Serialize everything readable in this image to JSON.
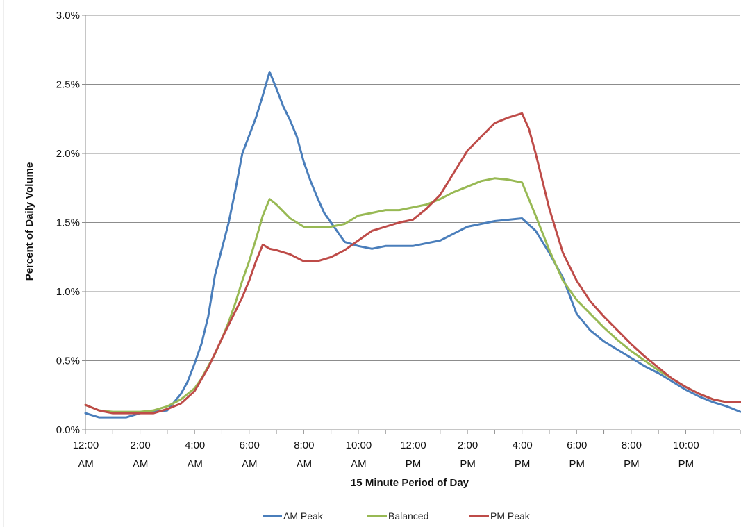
{
  "chart_data": {
    "type": "line",
    "title": "",
    "xlabel": "15 Minute Period of Day",
    "ylabel": "Percent of Daily Volume",
    "ylim": [
      0,
      3.0
    ],
    "y_ticks": [
      "0.0%",
      "0.5%",
      "1.0%",
      "1.5%",
      "2.0%",
      "2.5%",
      "3.0%"
    ],
    "x_tick_labels": [
      [
        "12:00",
        "AM"
      ],
      [
        "2:00",
        "AM"
      ],
      [
        "4:00",
        "AM"
      ],
      [
        "6:00",
        "AM"
      ],
      [
        "8:00",
        "AM"
      ],
      [
        "10:00",
        "AM"
      ],
      [
        "12:00",
        "PM"
      ],
      [
        "2:00",
        "PM"
      ],
      [
        "4:00",
        "PM"
      ],
      [
        "6:00",
        "PM"
      ],
      [
        "8:00",
        "PM"
      ],
      [
        "10:00",
        "PM"
      ]
    ],
    "x_unit": "hour of day",
    "x_range": [
      0,
      24
    ],
    "grid": "horizontal",
    "legend_position": "bottom",
    "series": [
      {
        "name": "AM Peak",
        "color": "#4a7ebb",
        "x": [
          0,
          0.5,
          1,
          1.5,
          2,
          2.5,
          3,
          3.25,
          3.5,
          3.75,
          4,
          4.25,
          4.5,
          4.75,
          5,
          5.25,
          5.5,
          5.75,
          6,
          6.25,
          6.5,
          6.75,
          7,
          7.25,
          7.5,
          7.75,
          8,
          8.25,
          8.5,
          8.75,
          9,
          9.5,
          10,
          10.5,
          11,
          11.5,
          12,
          12.5,
          13,
          13.5,
          14,
          14.5,
          15,
          15.5,
          16,
          16.5,
          16.75,
          17,
          17.5,
          18,
          18.5,
          19,
          19.5,
          20,
          20.5,
          21,
          21.5,
          22,
          22.5,
          23,
          23.5,
          24
        ],
        "values": [
          0.12,
          0.09,
          0.09,
          0.09,
          0.12,
          0.13,
          0.14,
          0.2,
          0.26,
          0.35,
          0.48,
          0.62,
          0.82,
          1.12,
          1.31,
          1.5,
          1.74,
          2.0,
          2.13,
          2.26,
          2.42,
          2.59,
          2.47,
          2.34,
          2.24,
          2.12,
          1.94,
          1.8,
          1.68,
          1.57,
          1.5,
          1.36,
          1.33,
          1.31,
          1.33,
          1.33,
          1.33,
          1.35,
          1.37,
          1.42,
          1.47,
          1.49,
          1.51,
          1.52,
          1.53,
          1.44,
          1.36,
          1.28,
          1.1,
          0.84,
          0.72,
          0.64,
          0.58,
          0.52,
          0.46,
          0.41,
          0.35,
          0.29,
          0.24,
          0.2,
          0.17,
          0.13
        ]
      },
      {
        "name": "Balanced",
        "color": "#98b954",
        "x": [
          0,
          0.5,
          1,
          1.5,
          2,
          2.5,
          3,
          3.5,
          4,
          4.25,
          4.5,
          4.75,
          5,
          5.25,
          5.5,
          5.75,
          6,
          6.25,
          6.5,
          6.75,
          7,
          7.5,
          8,
          8.5,
          9,
          9.5,
          10,
          10.5,
          11,
          11.5,
          12,
          12.5,
          13,
          13.5,
          14,
          14.5,
          15,
          15.5,
          15.75,
          16,
          16.5,
          17,
          17.5,
          18,
          18.5,
          19,
          19.5,
          20,
          20.5,
          21,
          21.5,
          22,
          22.5,
          23,
          23.5,
          24
        ],
        "values": [
          0.18,
          0.14,
          0.13,
          0.13,
          0.13,
          0.14,
          0.17,
          0.22,
          0.3,
          0.37,
          0.46,
          0.55,
          0.66,
          0.78,
          0.92,
          1.08,
          1.22,
          1.38,
          1.55,
          1.67,
          1.63,
          1.53,
          1.47,
          1.47,
          1.47,
          1.49,
          1.55,
          1.57,
          1.59,
          1.59,
          1.61,
          1.63,
          1.67,
          1.72,
          1.76,
          1.8,
          1.82,
          1.81,
          1.8,
          1.79,
          1.55,
          1.3,
          1.08,
          0.94,
          0.84,
          0.74,
          0.65,
          0.57,
          0.5,
          0.43,
          0.37,
          0.31,
          0.26,
          0.22,
          0.2,
          0.2
        ]
      },
      {
        "name": "PM Peak",
        "color": "#be4b48",
        "x": [
          0,
          0.5,
          1,
          1.5,
          2,
          2.5,
          3,
          3.5,
          4,
          4.5,
          5,
          5.5,
          5.75,
          6,
          6.25,
          6.5,
          6.75,
          7,
          7.5,
          8,
          8.5,
          9,
          9.5,
          10,
          10.5,
          11,
          11.5,
          12,
          12.5,
          13,
          13.5,
          14,
          14.5,
          15,
          15.5,
          16,
          16.25,
          16.5,
          17,
          17.5,
          18,
          18.5,
          19,
          19.5,
          20,
          20.5,
          21,
          21.5,
          22,
          22.5,
          23,
          23.5,
          24
        ],
        "values": [
          0.18,
          0.14,
          0.12,
          0.12,
          0.12,
          0.12,
          0.15,
          0.19,
          0.28,
          0.45,
          0.66,
          0.86,
          0.96,
          1.08,
          1.22,
          1.34,
          1.31,
          1.3,
          1.27,
          1.22,
          1.22,
          1.25,
          1.3,
          1.37,
          1.44,
          1.47,
          1.5,
          1.52,
          1.6,
          1.7,
          1.86,
          2.02,
          2.12,
          2.22,
          2.26,
          2.29,
          2.18,
          2.0,
          1.6,
          1.28,
          1.08,
          0.93,
          0.82,
          0.72,
          0.62,
          0.53,
          0.45,
          0.37,
          0.31,
          0.26,
          0.22,
          0.2,
          0.2
        ]
      }
    ]
  }
}
